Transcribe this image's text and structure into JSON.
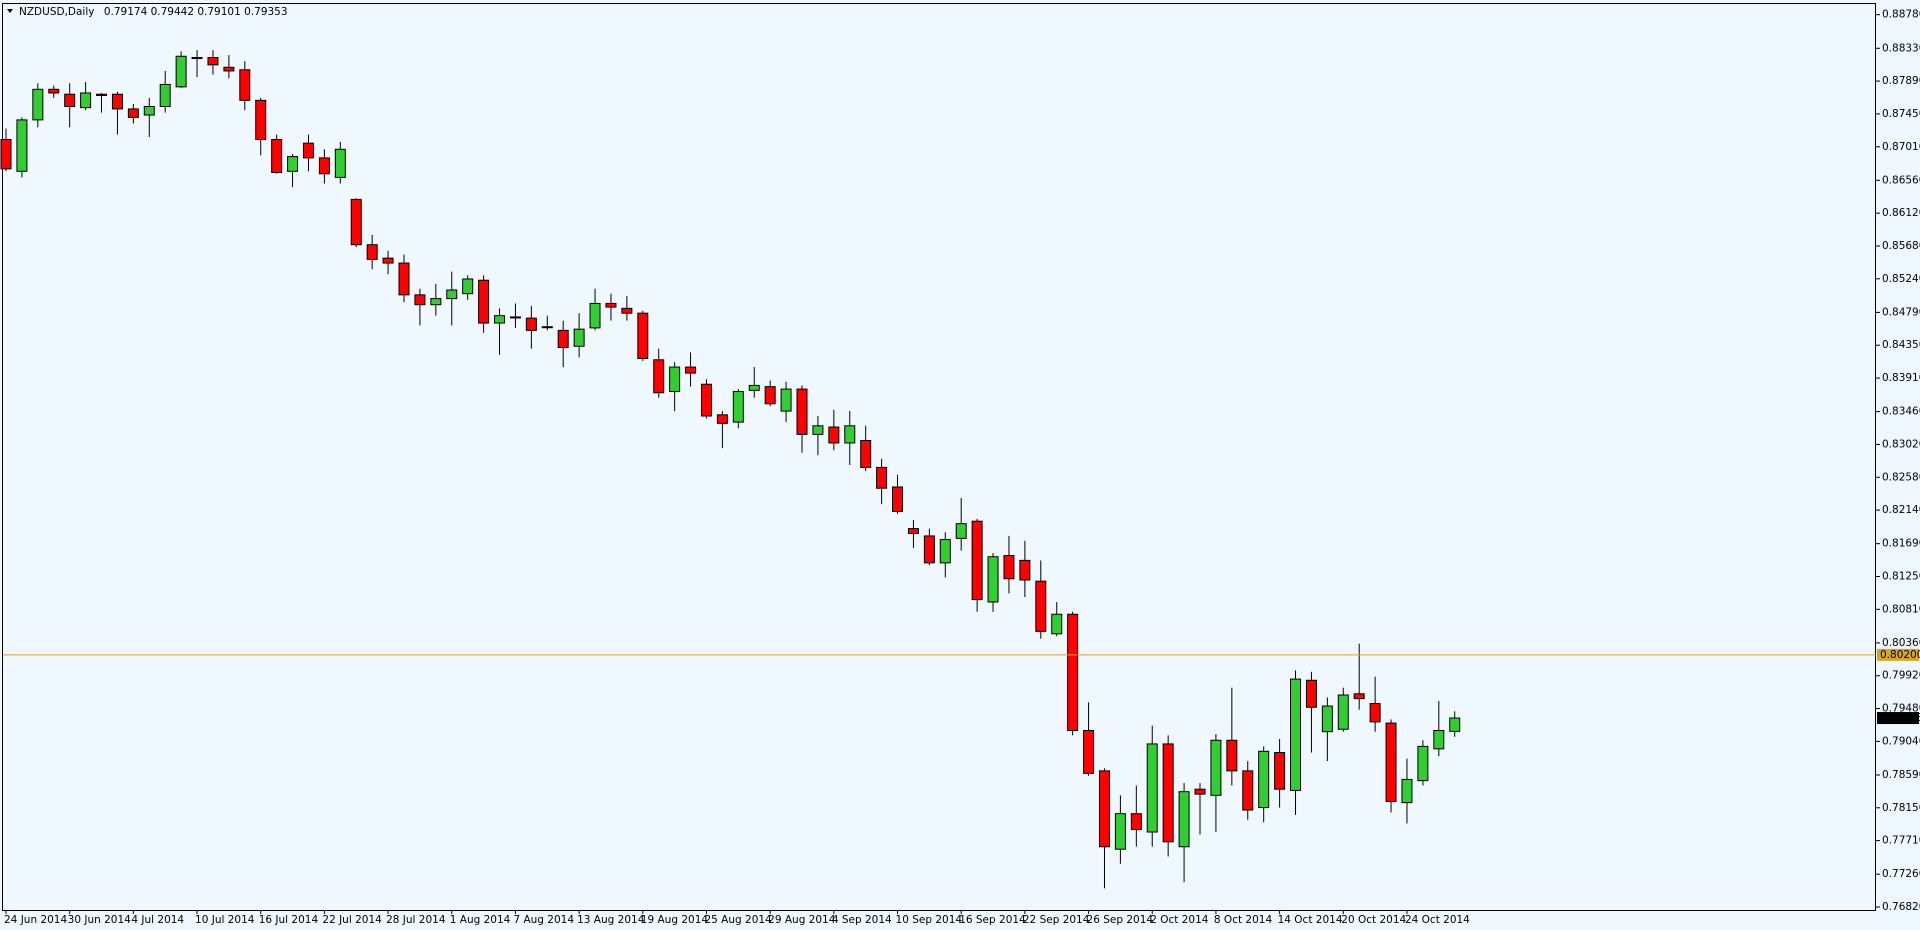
{
  "chart_data": {
    "type": "candlestick",
    "title": "NZDUSD,Daily",
    "up_color": "#32cd32",
    "down_color": "#ff0000",
    "categories": [
      "24 Jun 2014",
      null,
      null,
      null,
      "30 Jun 2014",
      null,
      null,
      null,
      "4 Jul 2014",
      null,
      null,
      null,
      "10 Jul 2014",
      null,
      null,
      null,
      "16 Jul 2014",
      null,
      null,
      null,
      "22 Jul 2014",
      null,
      null,
      null,
      "28 Jul 2014",
      null,
      null,
      null,
      "1 Aug 2014",
      null,
      null,
      null,
      "7 Aug 2014",
      null,
      null,
      null,
      "13 Aug 2014",
      null,
      null,
      null,
      "19 Aug 2014",
      null,
      null,
      null,
      "25 Aug 2014",
      null,
      null,
      null,
      "29 Aug 2014",
      null,
      null,
      null,
      "4 Sep 2014",
      null,
      null,
      null,
      "10 Sep 2014",
      null,
      null,
      null,
      "16 Sep 2014",
      null,
      null,
      null,
      "22 Sep 2014",
      null,
      null,
      null,
      "26 Sep 2014",
      null,
      null,
      null,
      "2 Oct 2014",
      null,
      null,
      null,
      "8 Oct 2014",
      null,
      null,
      null,
      "14 Oct 2014",
      null,
      null,
      null,
      "20 Oct 2014",
      null,
      null,
      null,
      "24 Oct 2014",
      null,
      null,
      null
    ],
    "open": [
      0.87107,
      0.86681,
      0.8737,
      0.8778,
      0.87714,
      0.87534,
      0.87714,
      0.87714,
      0.87517,
      0.87435,
      0.8755,
      0.87813,
      0.88206,
      0.88206,
      0.88075,
      0.88042,
      0.87632,
      0.87107,
      0.86681,
      0.87058,
      0.86861,
      0.86599,
      0.86304,
      0.85697,
      0.85517,
      0.85451,
      0.85025,
      0.84893,
      0.84975,
      0.85041,
      0.85221,
      0.84647,
      0.84729,
      0.84713,
      0.84598,
      0.84549,
      0.84336,
      0.84582,
      0.8491,
      0.84844,
      0.84779,
      0.84155,
      0.83729,
      0.84057,
      0.83827,
      0.83417,
      0.83319,
      0.83745,
      0.83795,
      0.83467,
      0.83762,
      0.83155,
      0.83253,
      0.8304,
      0.83073,
      0.82712,
      0.8245,
      0.81892,
      0.81794,
      0.81433,
      0.81761,
      0.81991,
      0.80908,
      0.81531,
      0.81466,
      0.81187,
      0.80482,
      0.80744,
      0.79186,
      0.78645,
      0.77595,
      0.78071,
      0.77825,
      0.79006,
      0.77628,
      0.78399,
      0.78317,
      0.79055,
      0.78645,
      0.78153,
      0.78891,
      0.78383,
      0.79859,
      0.7917,
      0.79203,
      0.79678,
      0.79547,
      0.79285,
      0.78219,
      0.78514,
      0.7894,
      0.79174
    ],
    "high": [
      0.87255,
      0.87403,
      0.87862,
      0.87829,
      0.87862,
      0.87878,
      0.87731,
      0.87747,
      0.87583,
      0.87665,
      0.88026,
      0.88288,
      0.88305,
      0.88305,
      0.88239,
      0.88157,
      0.87665,
      0.87173,
      0.86911,
      0.87173,
      0.86976,
      0.87075,
      0.8632,
      0.85828,
      0.85615,
      0.85566,
      0.85107,
      0.85172,
      0.85336,
      0.85287,
      0.85287,
      0.84844,
      0.8491,
      0.84877,
      0.84746,
      0.8468,
      0.84779,
      0.85107,
      0.85041,
      0.85008,
      0.84811,
      0.84303,
      0.84123,
      0.84254,
      0.83893,
      0.83467,
      0.83762,
      0.84057,
      0.83877,
      0.8386,
      0.83811,
      0.83401,
      0.83483,
      0.83467,
      0.8327,
      0.82827,
      0.82614,
      0.82007,
      0.81892,
      0.81843,
      0.82302,
      0.82023,
      0.81564,
      0.81794,
      0.81728,
      0.81466,
      0.80908,
      0.80777,
      0.79563,
      0.78678,
      0.78317,
      0.78448,
      0.79252,
      0.79121,
      0.78481,
      0.78481,
      0.79137,
      0.7976,
      0.78776,
      0.78973,
      0.79071,
      0.7999,
      0.79973,
      0.79629,
      0.7976,
      0.80351,
      0.79908,
      0.79334,
      0.78809,
      0.79055,
      0.7958,
      0.79442
    ],
    "low": [
      0.86681,
      0.86599,
      0.87271,
      0.87665,
      0.87271,
      0.87501,
      0.87468,
      0.87173,
      0.87321,
      0.8714,
      0.87468,
      0.87796,
      0.87944,
      0.87977,
      0.87927,
      0.87501,
      0.86894,
      0.86648,
      0.86468,
      0.86681,
      0.86517,
      0.86517,
      0.85664,
      0.85369,
      0.85303,
      0.84926,
      0.84615,
      0.84746,
      0.84615,
      0.84959,
      0.84516,
      0.84221,
      0.84582,
      0.84303,
      0.84549,
      0.84057,
      0.84188,
      0.84549,
      0.8468,
      0.8468,
      0.84139,
      0.83647,
      0.83467,
      0.83795,
      0.83368,
      0.82971,
      0.83237,
      0.83647,
      0.83532,
      0.83319,
      0.82909,
      0.82876,
      0.82942,
      0.82745,
      0.82663,
      0.8222,
      0.82089,
      0.8163,
      0.814,
      0.81236,
      0.81597,
      0.80777,
      0.80777,
      0.81023,
      0.80974,
      0.80416,
      0.80449,
      0.79121,
      0.78579,
      0.77071,
      0.77399,
      0.77628,
      0.77628,
      0.77497,
      0.77153,
      0.77792,
      0.77825,
      0.78448,
      0.77989,
      0.77956,
      0.78153,
      0.78055,
      0.78891,
      0.78776,
      0.7917,
      0.79465,
      0.7917,
      0.78087,
      0.7794,
      0.78448,
      0.78842,
      0.79101
    ],
    "close": [
      0.86714,
      0.8737,
      0.8778,
      0.87731,
      0.8755,
      0.87731,
      0.87698,
      0.87517,
      0.87403,
      0.8755,
      0.87845,
      0.88223,
      0.882,
      0.88108,
      0.88026,
      0.87632,
      0.87107,
      0.86665,
      0.86878,
      0.86861,
      0.86648,
      0.86976,
      0.85697,
      0.855,
      0.85451,
      0.85025,
      0.84893,
      0.84975,
      0.8509,
      0.85238,
      0.84647,
      0.84746,
      0.8472,
      0.84549,
      0.8459,
      0.84319,
      0.84565,
      0.8491,
      0.84861,
      0.84779,
      0.84172,
      0.83713,
      0.84057,
      0.83976,
      0.83401,
      0.83303,
      0.83729,
      0.83811,
      0.83565,
      0.83762,
      0.83155,
      0.8327,
      0.8304,
      0.8327,
      0.82712,
      0.82433,
      0.82122,
      0.81827,
      0.81433,
      0.81745,
      0.81958,
      0.80941,
      0.81515,
      0.8122,
      0.81203,
      0.80515,
      0.80744,
      0.79186,
      0.78612,
      0.77628,
      0.78071,
      0.77858,
      0.79006,
      0.77694,
      0.78366,
      0.78333,
      0.79055,
      0.78645,
      0.7812,
      0.78907,
      0.78399,
      0.79875,
      0.79498,
      0.79514,
      0.79662,
      0.79613,
      0.79301,
      0.78235,
      0.7853,
      0.78973,
      0.79186,
      0.79353
    ],
    "hline": {
      "value": 0.802,
      "label": "0.80200",
      "color": "#daa520"
    },
    "ylim": [
      0.7678,
      0.8891
    ],
    "yticks": [
      {
        "value": 0.8878,
        "label": "0.88780"
      },
      {
        "value": 0.8833,
        "label": "0.88330"
      },
      {
        "value": 0.8789,
        "label": "0.87890"
      },
      {
        "value": 0.8745,
        "label": "0.87450"
      },
      {
        "value": 0.8701,
        "label": "0.87010"
      },
      {
        "value": 0.8656,
        "label": "0.86560"
      },
      {
        "value": 0.8612,
        "label": "0.86120"
      },
      {
        "value": 0.8568,
        "label": "0.85680"
      },
      {
        "value": 0.8524,
        "label": "0.85240"
      },
      {
        "value": 0.8479,
        "label": "0.84790"
      },
      {
        "value": 0.8435,
        "label": "0.84350"
      },
      {
        "value": 0.8391,
        "label": "0.83910"
      },
      {
        "value": 0.8346,
        "label": "0.83460"
      },
      {
        "value": 0.8302,
        "label": "0.83020"
      },
      {
        "value": 0.8258,
        "label": "0.82580"
      },
      {
        "value": 0.8214,
        "label": "0.82140"
      },
      {
        "value": 0.8169,
        "label": "0.81690"
      },
      {
        "value": 0.8125,
        "label": "0.81250"
      },
      {
        "value": 0.8081,
        "label": "0.80810"
      },
      {
        "value": 0.8036,
        "label": "0.80360"
      },
      {
        "value": 0.7992,
        "label": "0.79920"
      },
      {
        "value": 0.7948,
        "label": "0.79480"
      },
      {
        "value": 0.7904,
        "label": "0.79040"
      },
      {
        "value": 0.7859,
        "label": "0.78590"
      },
      {
        "value": 0.7815,
        "label": "0.78150"
      },
      {
        "value": 0.7771,
        "label": "0.77710"
      },
      {
        "value": 0.7726,
        "label": "0.77260"
      },
      {
        "value": 0.7682,
        "label": "0.76820"
      }
    ]
  }
}
